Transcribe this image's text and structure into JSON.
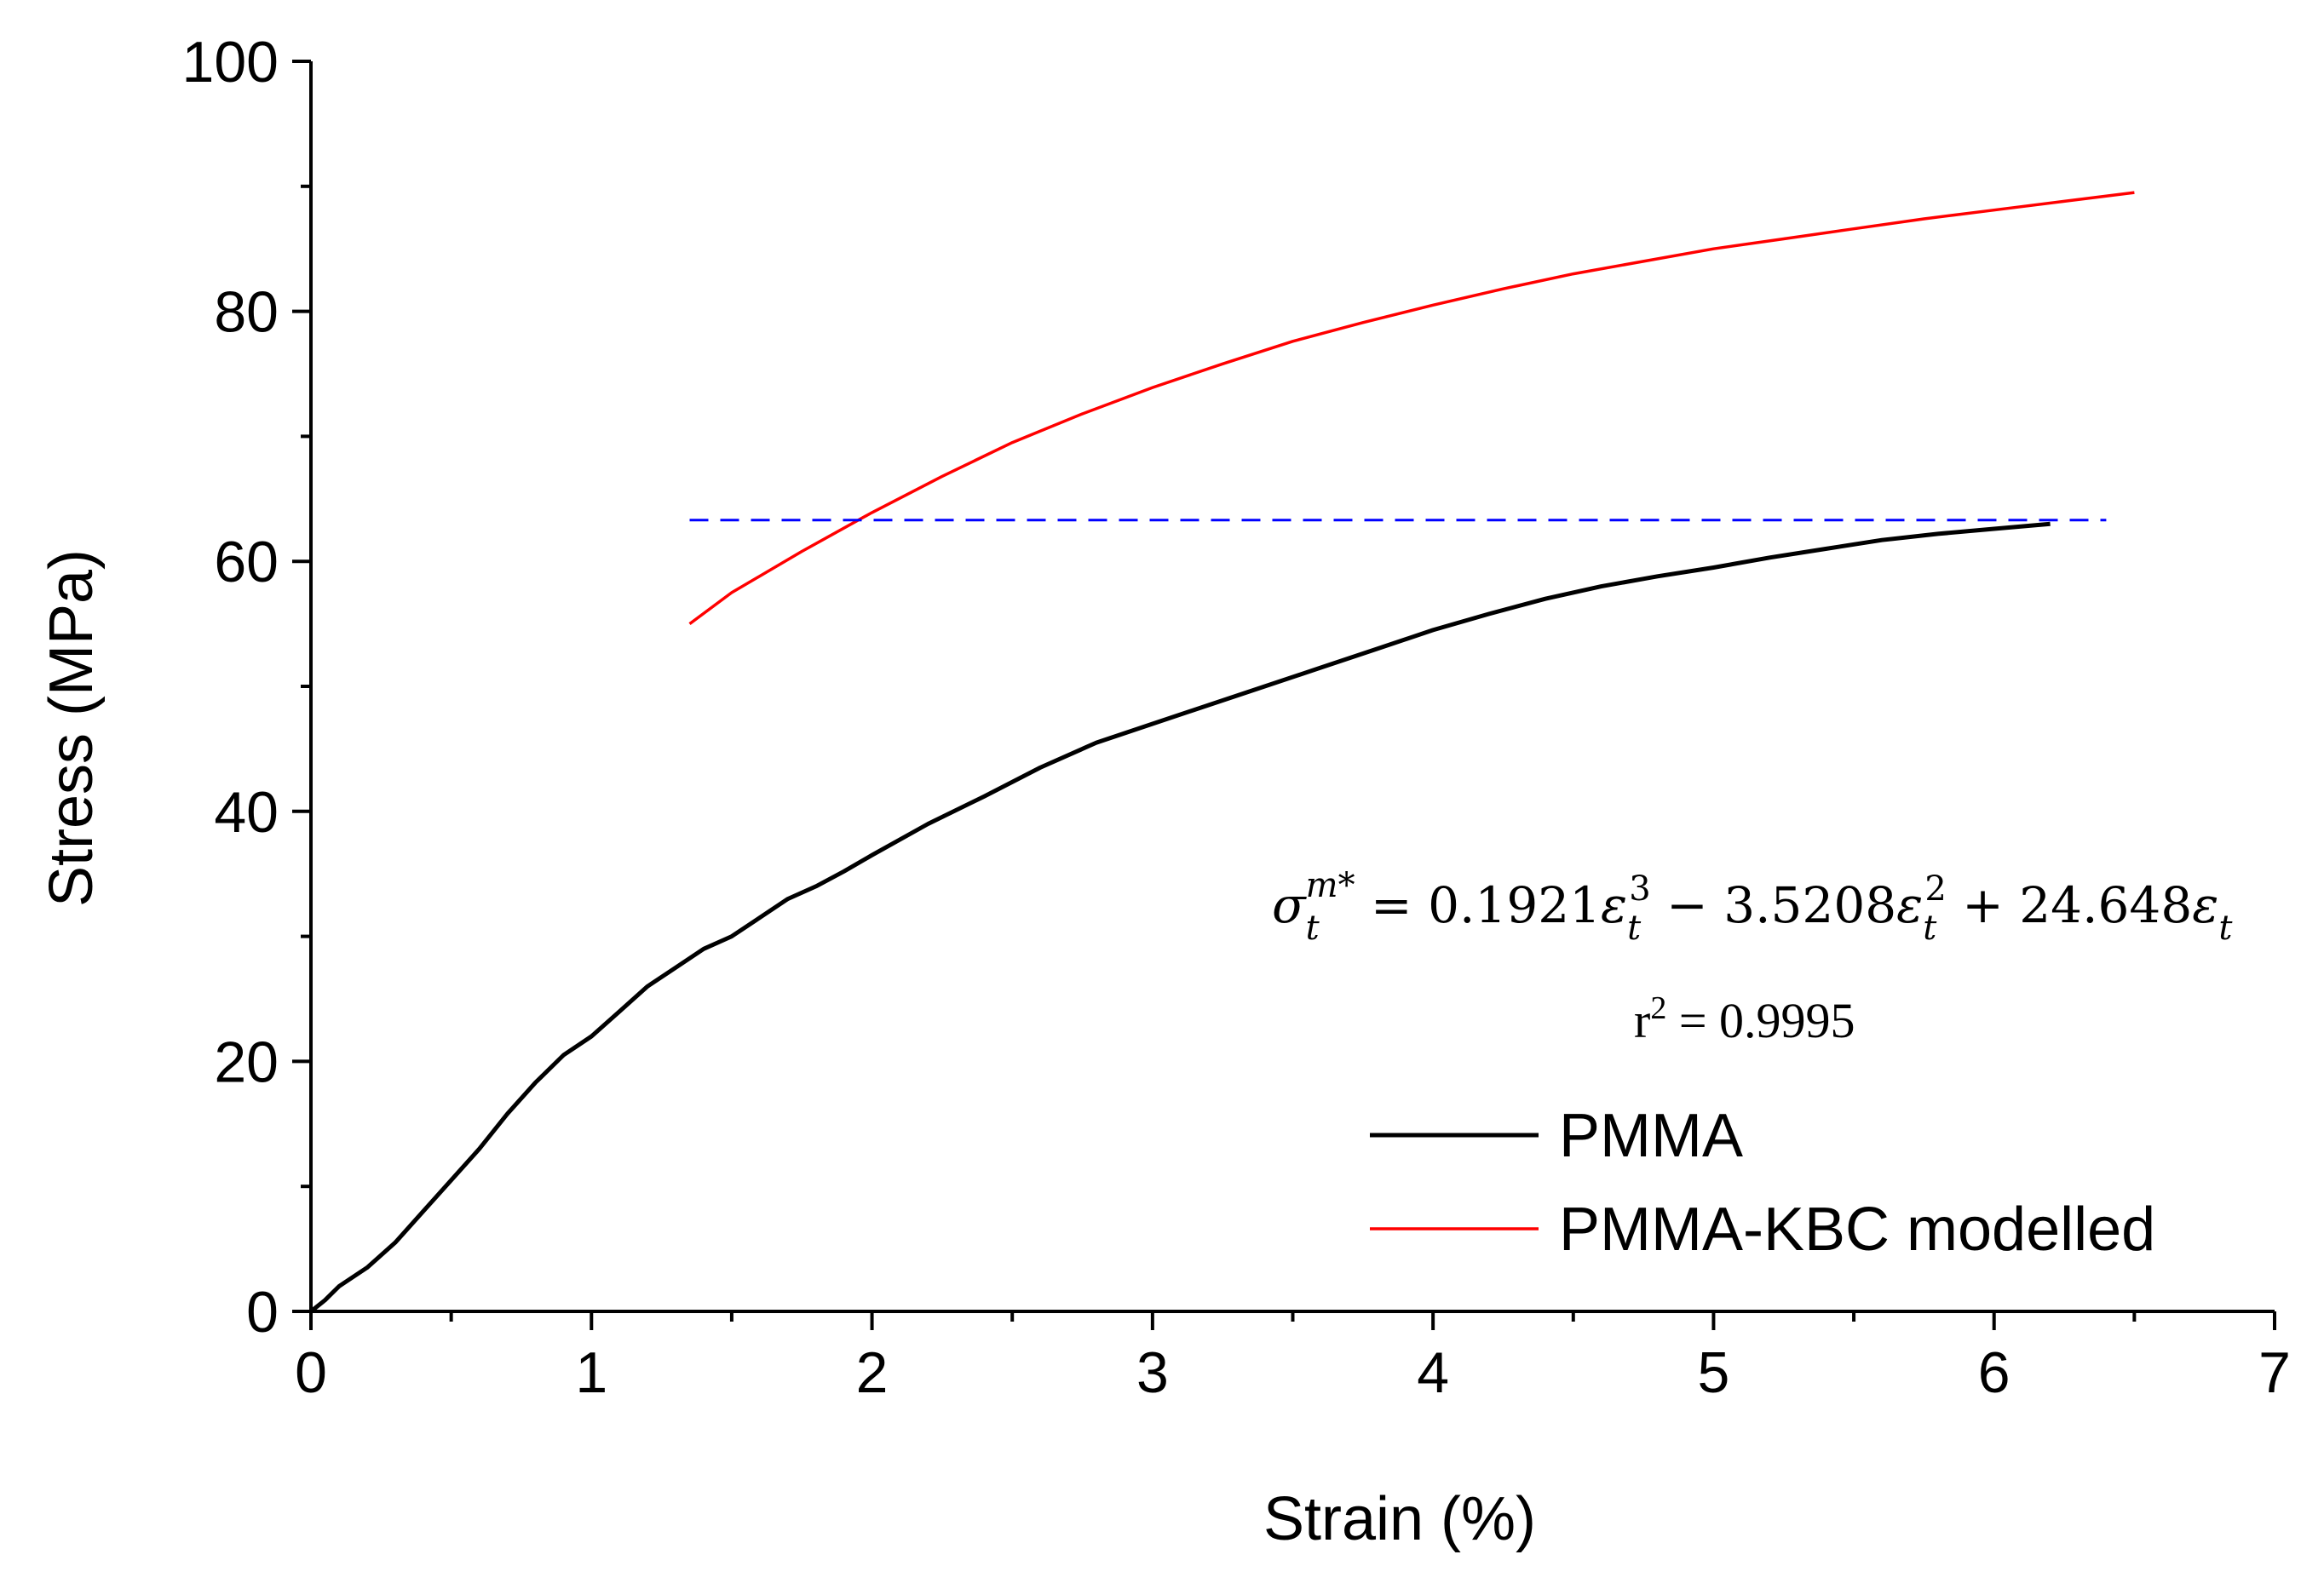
{
  "chart_data": {
    "type": "line",
    "title": "",
    "xlabel": "Strain (%)",
    "ylabel": "Stress (MPa)",
    "xlim": [
      0,
      7
    ],
    "ylim": [
      0,
      100
    ],
    "x_major_ticks": [
      0,
      1,
      2,
      3,
      4,
      5,
      6,
      7
    ],
    "y_major_ticks": [
      0,
      20,
      40,
      60,
      80,
      100
    ],
    "x_tick_labels": [
      "0",
      "1",
      "2",
      "3",
      "4",
      "5",
      "6",
      "7"
    ],
    "y_tick_labels": [
      "0",
      "20",
      "40",
      "60",
      "80",
      "100"
    ],
    "grid": false,
    "legend_position": "bottom-right",
    "series": [
      {
        "name": "PMMA",
        "color": "#000000",
        "x": [
          0,
          0.05,
          0.1,
          0.2,
          0.3,
          0.4,
          0.5,
          0.6,
          0.7,
          0.8,
          0.9,
          1.0,
          1.1,
          1.2,
          1.3,
          1.4,
          1.5,
          1.6,
          1.7,
          1.8,
          1.9,
          2.0,
          2.2,
          2.4,
          2.6,
          2.8,
          3.0,
          3.2,
          3.4,
          3.6,
          3.8,
          4.0,
          4.2,
          4.4,
          4.6,
          4.8,
          5.0,
          5.2,
          5.4,
          5.6,
          5.8,
          6.0,
          6.2
        ],
        "values": [
          0,
          0.9,
          2.0,
          3.5,
          5.5,
          8.0,
          10.5,
          13.0,
          15.8,
          18.3,
          20.5,
          22.0,
          24.0,
          26.0,
          27.5,
          29.0,
          30.0,
          31.5,
          33.0,
          34.0,
          35.2,
          36.5,
          39.0,
          41.2,
          43.5,
          45.5,
          47.0,
          48.5,
          50.0,
          51.5,
          53.0,
          54.5,
          55.8,
          57.0,
          58.0,
          58.8,
          59.5,
          60.3,
          61.0,
          61.7,
          62.2,
          62.6,
          63.0
        ]
      },
      {
        "name": "PMMA-KBC modelled",
        "color": "#ff0000",
        "x": [
          1.35,
          1.5,
          1.75,
          2.0,
          2.25,
          2.5,
          2.75,
          3.0,
          3.25,
          3.5,
          3.75,
          4.0,
          4.25,
          4.5,
          4.75,
          5.0,
          5.25,
          5.5,
          5.75,
          6.0,
          6.25,
          6.5
        ],
        "values": [
          55.0,
          57.5,
          60.8,
          63.9,
          66.8,
          69.5,
          71.8,
          73.9,
          75.8,
          77.6,
          79.1,
          80.5,
          81.8,
          83.0,
          84.0,
          85.0,
          85.8,
          86.6,
          87.4,
          88.1,
          88.8,
          89.5
        ]
      },
      {
        "name": "reference line",
        "color": "#0000ff",
        "style": "dashed",
        "x": [
          1.35,
          6.4
        ],
        "values": [
          63.3,
          63.3
        ]
      }
    ],
    "legend": [
      {
        "label": "PMMA",
        "color": "#000000"
      },
      {
        "label": "PMMA-KBC modelled",
        "color": "#ff0000"
      }
    ],
    "annotations": {
      "equation": {
        "lhs_sigma": "σ",
        "lhs_sub": "t",
        "lhs_sup": "m*",
        "eq": " = ",
        "c1": "0.1921",
        "c2": "3.5208",
        "c3": "24.648",
        "eps": "ε",
        "eps_sub": "t",
        "pow3": "3",
        "pow2": "2",
        "minus": " − ",
        "plus": " + "
      },
      "r_squared": {
        "prefix": "r",
        "sup": "2",
        "value": " = 0.9995"
      }
    }
  }
}
